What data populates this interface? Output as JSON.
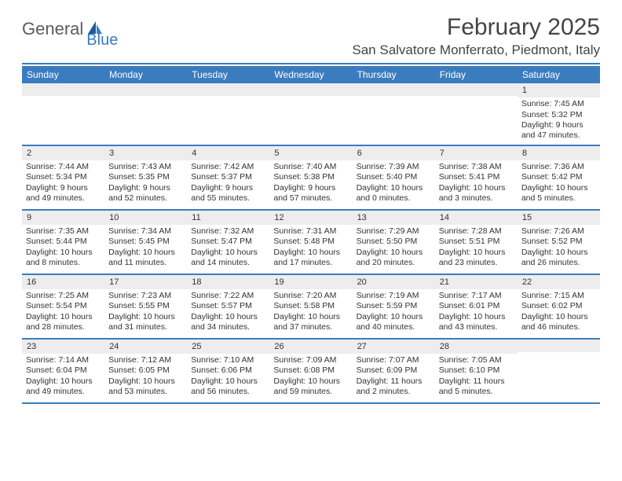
{
  "logo": {
    "text_a": "General",
    "text_b": "Blue"
  },
  "title": "February 2025",
  "location": "San Salvatore Monferrato, Piedmont, Italy",
  "colors": {
    "accent": "#3b7cbf",
    "header_bg": "#3b7cbf",
    "header_text": "#ffffff",
    "daynum_bg": "#ededed",
    "text": "#333333",
    "logo_gray": "#5c5c5c"
  },
  "layout": {
    "columns": 7,
    "rows": 5,
    "aspect": "792x612"
  },
  "day_names": [
    "Sunday",
    "Monday",
    "Tuesday",
    "Wednesday",
    "Thursday",
    "Friday",
    "Saturday"
  ],
  "weeks": [
    [
      null,
      null,
      null,
      null,
      null,
      null,
      {
        "n": "1",
        "sunrise": "Sunrise: 7:45 AM",
        "sunset": "Sunset: 5:32 PM",
        "d1": "Daylight: 9 hours",
        "d2": "and 47 minutes."
      }
    ],
    [
      {
        "n": "2",
        "sunrise": "Sunrise: 7:44 AM",
        "sunset": "Sunset: 5:34 PM",
        "d1": "Daylight: 9 hours",
        "d2": "and 49 minutes."
      },
      {
        "n": "3",
        "sunrise": "Sunrise: 7:43 AM",
        "sunset": "Sunset: 5:35 PM",
        "d1": "Daylight: 9 hours",
        "d2": "and 52 minutes."
      },
      {
        "n": "4",
        "sunrise": "Sunrise: 7:42 AM",
        "sunset": "Sunset: 5:37 PM",
        "d1": "Daylight: 9 hours",
        "d2": "and 55 minutes."
      },
      {
        "n": "5",
        "sunrise": "Sunrise: 7:40 AM",
        "sunset": "Sunset: 5:38 PM",
        "d1": "Daylight: 9 hours",
        "d2": "and 57 minutes."
      },
      {
        "n": "6",
        "sunrise": "Sunrise: 7:39 AM",
        "sunset": "Sunset: 5:40 PM",
        "d1": "Daylight: 10 hours",
        "d2": "and 0 minutes."
      },
      {
        "n": "7",
        "sunrise": "Sunrise: 7:38 AM",
        "sunset": "Sunset: 5:41 PM",
        "d1": "Daylight: 10 hours",
        "d2": "and 3 minutes."
      },
      {
        "n": "8",
        "sunrise": "Sunrise: 7:36 AM",
        "sunset": "Sunset: 5:42 PM",
        "d1": "Daylight: 10 hours",
        "d2": "and 5 minutes."
      }
    ],
    [
      {
        "n": "9",
        "sunrise": "Sunrise: 7:35 AM",
        "sunset": "Sunset: 5:44 PM",
        "d1": "Daylight: 10 hours",
        "d2": "and 8 minutes."
      },
      {
        "n": "10",
        "sunrise": "Sunrise: 7:34 AM",
        "sunset": "Sunset: 5:45 PM",
        "d1": "Daylight: 10 hours",
        "d2": "and 11 minutes."
      },
      {
        "n": "11",
        "sunrise": "Sunrise: 7:32 AM",
        "sunset": "Sunset: 5:47 PM",
        "d1": "Daylight: 10 hours",
        "d2": "and 14 minutes."
      },
      {
        "n": "12",
        "sunrise": "Sunrise: 7:31 AM",
        "sunset": "Sunset: 5:48 PM",
        "d1": "Daylight: 10 hours",
        "d2": "and 17 minutes."
      },
      {
        "n": "13",
        "sunrise": "Sunrise: 7:29 AM",
        "sunset": "Sunset: 5:50 PM",
        "d1": "Daylight: 10 hours",
        "d2": "and 20 minutes."
      },
      {
        "n": "14",
        "sunrise": "Sunrise: 7:28 AM",
        "sunset": "Sunset: 5:51 PM",
        "d1": "Daylight: 10 hours",
        "d2": "and 23 minutes."
      },
      {
        "n": "15",
        "sunrise": "Sunrise: 7:26 AM",
        "sunset": "Sunset: 5:52 PM",
        "d1": "Daylight: 10 hours",
        "d2": "and 26 minutes."
      }
    ],
    [
      {
        "n": "16",
        "sunrise": "Sunrise: 7:25 AM",
        "sunset": "Sunset: 5:54 PM",
        "d1": "Daylight: 10 hours",
        "d2": "and 28 minutes."
      },
      {
        "n": "17",
        "sunrise": "Sunrise: 7:23 AM",
        "sunset": "Sunset: 5:55 PM",
        "d1": "Daylight: 10 hours",
        "d2": "and 31 minutes."
      },
      {
        "n": "18",
        "sunrise": "Sunrise: 7:22 AM",
        "sunset": "Sunset: 5:57 PM",
        "d1": "Daylight: 10 hours",
        "d2": "and 34 minutes."
      },
      {
        "n": "19",
        "sunrise": "Sunrise: 7:20 AM",
        "sunset": "Sunset: 5:58 PM",
        "d1": "Daylight: 10 hours",
        "d2": "and 37 minutes."
      },
      {
        "n": "20",
        "sunrise": "Sunrise: 7:19 AM",
        "sunset": "Sunset: 5:59 PM",
        "d1": "Daylight: 10 hours",
        "d2": "and 40 minutes."
      },
      {
        "n": "21",
        "sunrise": "Sunrise: 7:17 AM",
        "sunset": "Sunset: 6:01 PM",
        "d1": "Daylight: 10 hours",
        "d2": "and 43 minutes."
      },
      {
        "n": "22",
        "sunrise": "Sunrise: 7:15 AM",
        "sunset": "Sunset: 6:02 PM",
        "d1": "Daylight: 10 hours",
        "d2": "and 46 minutes."
      }
    ],
    [
      {
        "n": "23",
        "sunrise": "Sunrise: 7:14 AM",
        "sunset": "Sunset: 6:04 PM",
        "d1": "Daylight: 10 hours",
        "d2": "and 49 minutes."
      },
      {
        "n": "24",
        "sunrise": "Sunrise: 7:12 AM",
        "sunset": "Sunset: 6:05 PM",
        "d1": "Daylight: 10 hours",
        "d2": "and 53 minutes."
      },
      {
        "n": "25",
        "sunrise": "Sunrise: 7:10 AM",
        "sunset": "Sunset: 6:06 PM",
        "d1": "Daylight: 10 hours",
        "d2": "and 56 minutes."
      },
      {
        "n": "26",
        "sunrise": "Sunrise: 7:09 AM",
        "sunset": "Sunset: 6:08 PM",
        "d1": "Daylight: 10 hours",
        "d2": "and 59 minutes."
      },
      {
        "n": "27",
        "sunrise": "Sunrise: 7:07 AM",
        "sunset": "Sunset: 6:09 PM",
        "d1": "Daylight: 11 hours",
        "d2": "and 2 minutes."
      },
      {
        "n": "28",
        "sunrise": "Sunrise: 7:05 AM",
        "sunset": "Sunset: 6:10 PM",
        "d1": "Daylight: 11 hours",
        "d2": "and 5 minutes."
      },
      null
    ]
  ]
}
